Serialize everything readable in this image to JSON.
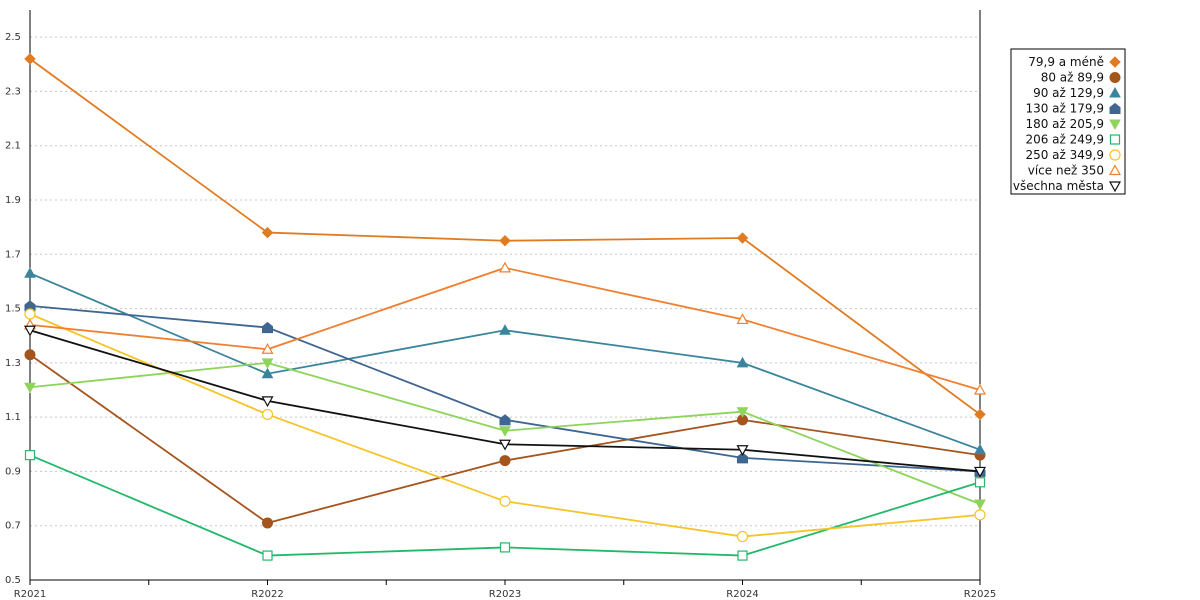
{
  "chart_data": {
    "type": "line",
    "title": "",
    "xlabel": "",
    "ylabel": "",
    "categories": [
      "R2021",
      "R2022",
      "R2023",
      "R2024",
      "R2025"
    ],
    "ylim": [
      0.5,
      2.6
    ],
    "yticks": [
      "0.5",
      "0.7",
      "0.9",
      "1.1",
      "1.3",
      "1.5",
      "1.7",
      "1.9",
      "2.1",
      "2.3",
      "2.5"
    ],
    "grid": "horizontal-dotted",
    "legend_position": "right",
    "series": [
      {
        "name": "79,9 a méně",
        "color": "#e07b20",
        "marker": "diamond",
        "values": [
          2.42,
          1.78,
          1.75,
          1.76,
          1.11
        ]
      },
      {
        "name": "80 až 89,9",
        "color": "#a5541c",
        "marker": "circle",
        "values": [
          1.33,
          0.71,
          0.94,
          1.09,
          0.96
        ]
      },
      {
        "name": "90 až 129,9",
        "color": "#3a849c",
        "marker": "triangle-up",
        "values": [
          1.63,
          1.26,
          1.42,
          1.3,
          0.98
        ]
      },
      {
        "name": "130 až 179,9",
        "color": "#3e6690",
        "marker": "pentagon",
        "values": [
          1.51,
          1.43,
          1.09,
          0.95,
          0.9
        ]
      },
      {
        "name": "180 až 205,9",
        "color": "#8cd45a",
        "marker": "triangle-down",
        "values": [
          1.21,
          1.3,
          1.05,
          1.12,
          0.78
        ]
      },
      {
        "name": "206 až 249,9",
        "color": "#22b86a",
        "marker": "square-open",
        "values": [
          0.96,
          0.59,
          0.62,
          0.59,
          0.86
        ]
      },
      {
        "name": "250 až 349,9",
        "color": "#f5c426",
        "marker": "circle-open",
        "values": [
          1.48,
          1.11,
          0.79,
          0.66,
          0.74
        ]
      },
      {
        "name": "více než 350",
        "color": "#f08030",
        "marker": "triangle-up-open",
        "values": [
          1.44,
          1.35,
          1.65,
          1.46,
          1.2
        ]
      },
      {
        "name": "všechna města",
        "color": "#111111",
        "marker": "triangle-down-open",
        "values": [
          1.42,
          1.16,
          1.0,
          0.98,
          0.9
        ]
      }
    ]
  }
}
